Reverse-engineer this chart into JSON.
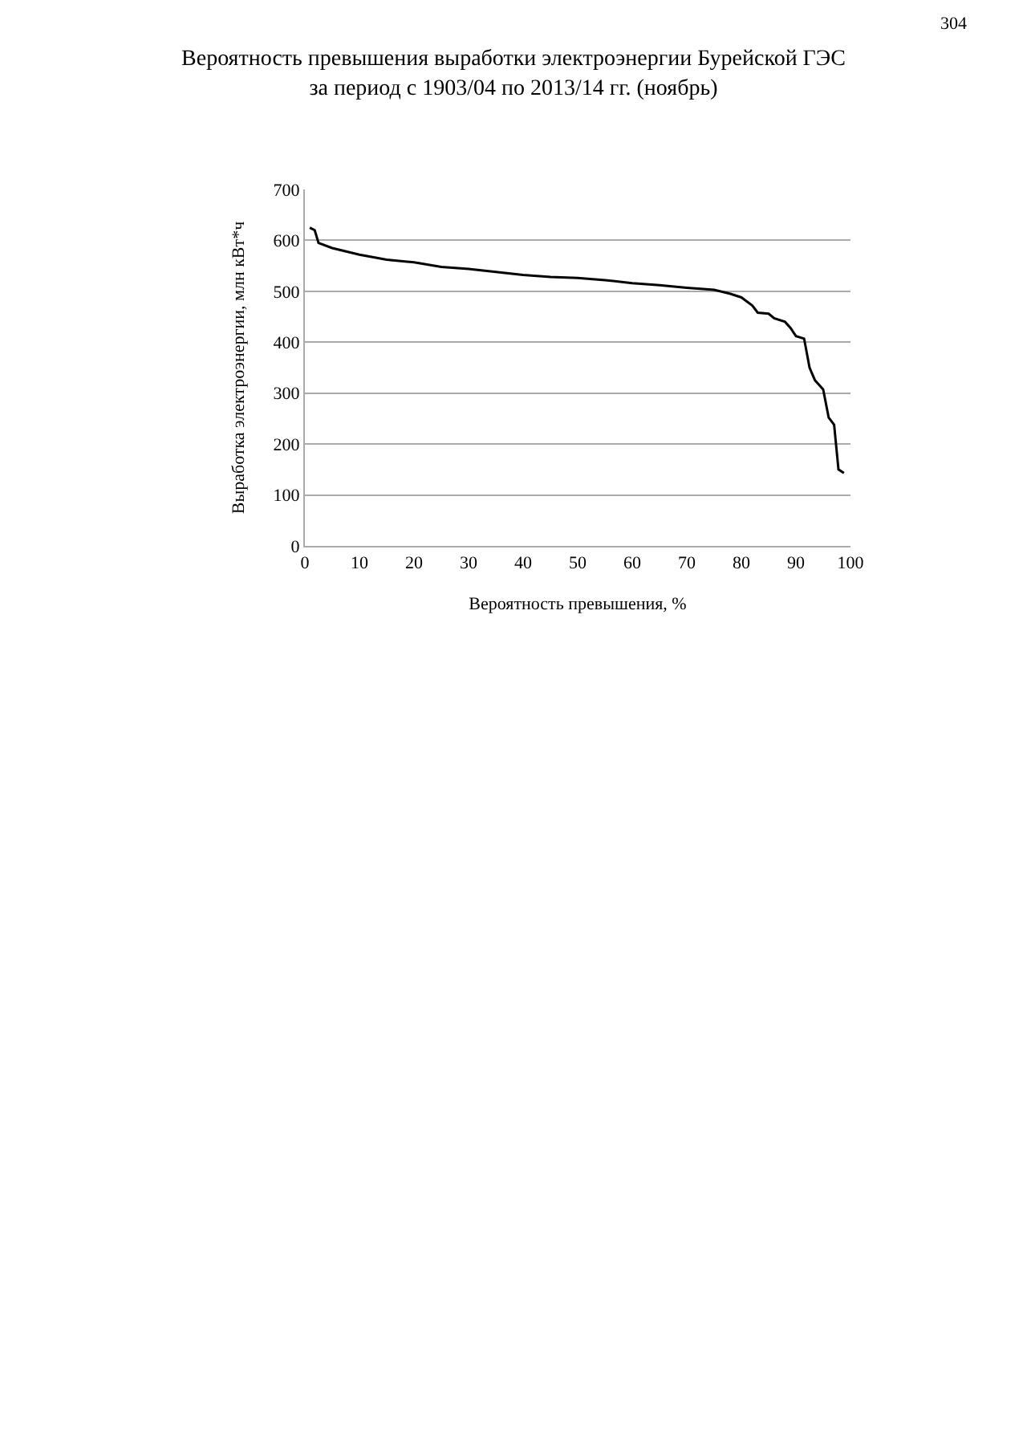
{
  "chart_data": {
    "type": "line",
    "title": "Вероятность превышения выработки электроэнергии Бурейской ГЭС\nза период с 1903/04 по 2013/14 гг. (ноябрь)",
    "xlabel": "Вероятность превышения, %",
    "ylabel": "Выработка электроэнергии, млн кВт*ч",
    "annotations": [
      "304"
    ],
    "x": [
      0.9,
      1.8,
      2.5,
      5,
      10,
      15,
      20,
      25,
      30,
      35,
      40,
      45,
      50,
      55,
      60,
      65,
      70,
      75,
      78,
      80,
      82,
      83,
      85,
      86,
      88,
      89,
      90,
      91.5,
      92.5,
      93.5,
      95,
      96,
      97,
      97.8,
      98.8
    ],
    "series": [
      {
        "color": "#000000",
        "values": [
          625,
          620,
          595,
          585,
          572,
          562,
          557,
          548,
          544,
          538,
          532,
          528,
          526,
          522,
          516,
          512,
          507,
          503,
          495,
          488,
          472,
          458,
          456,
          447,
          440,
          428,
          412,
          407,
          350,
          325,
          307,
          252,
          238,
          150,
          143
        ]
      }
    ],
    "xlim": [
      0,
      100
    ],
    "xticks": [
      0,
      10,
      20,
      30,
      40,
      50,
      60,
      70,
      80,
      90,
      100
    ],
    "ylim": [
      0,
      700
    ],
    "yticks": [
      0,
      100,
      200,
      300,
      400,
      500,
      600,
      700
    ],
    "grid": "y",
    "marker": "none",
    "line_style": "solid"
  }
}
